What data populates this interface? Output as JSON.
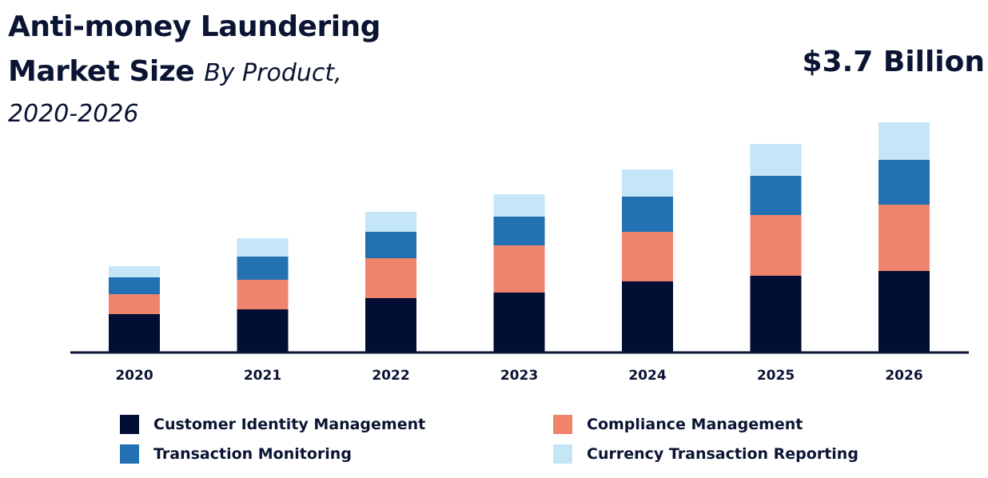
{
  "header": {
    "title_line1": "Anti-money Laundering",
    "title_line2": "Market Size",
    "subtitle_inline": "By Product,",
    "subtitle_line": "2020-2026",
    "total_value": "$3.7 Billion"
  },
  "colors": {
    "customer_identity": "#020e33",
    "compliance": "#f0836b",
    "transaction_monitoring": "#2371b2",
    "currency_reporting": "#c4e6f7",
    "axis": "#0b1533"
  },
  "chart_data": {
    "type": "bar",
    "stacked": true,
    "categories": [
      "2020",
      "2021",
      "2022",
      "2023",
      "2024",
      "2025",
      "2026"
    ],
    "series": [
      {
        "name": "Customer Identity Management",
        "values": [
          47,
          53,
          67,
          74,
          88,
          95,
          101
        ]
      },
      {
        "name": "Compliance Management",
        "values": [
          25,
          37,
          50,
          59,
          62,
          76,
          83
        ]
      },
      {
        "name": "Transaction Monitoring",
        "values": [
          21,
          29,
          33,
          36,
          44,
          49,
          56
        ]
      },
      {
        "name": "Currency Transaction Reporting",
        "values": [
          14,
          23,
          25,
          28,
          34,
          40,
          47
        ]
      }
    ],
    "title": "Anti-money Laundering Market Size By Product, 2020-2026",
    "xlabel": "",
    "ylabel": "",
    "ylim": [
      0,
      300
    ],
    "grid": false,
    "legend_position": "bottom",
    "annotation": "$3.7 Billion"
  },
  "legend": [
    {
      "label": "Customer Identity Management",
      "color_key": "customer_identity"
    },
    {
      "label": "Compliance Management",
      "color_key": "compliance"
    },
    {
      "label": "Transaction Monitoring",
      "color_key": "transaction_monitoring"
    },
    {
      "label": "Currency Transaction Reporting",
      "color_key": "currency_reporting"
    }
  ]
}
